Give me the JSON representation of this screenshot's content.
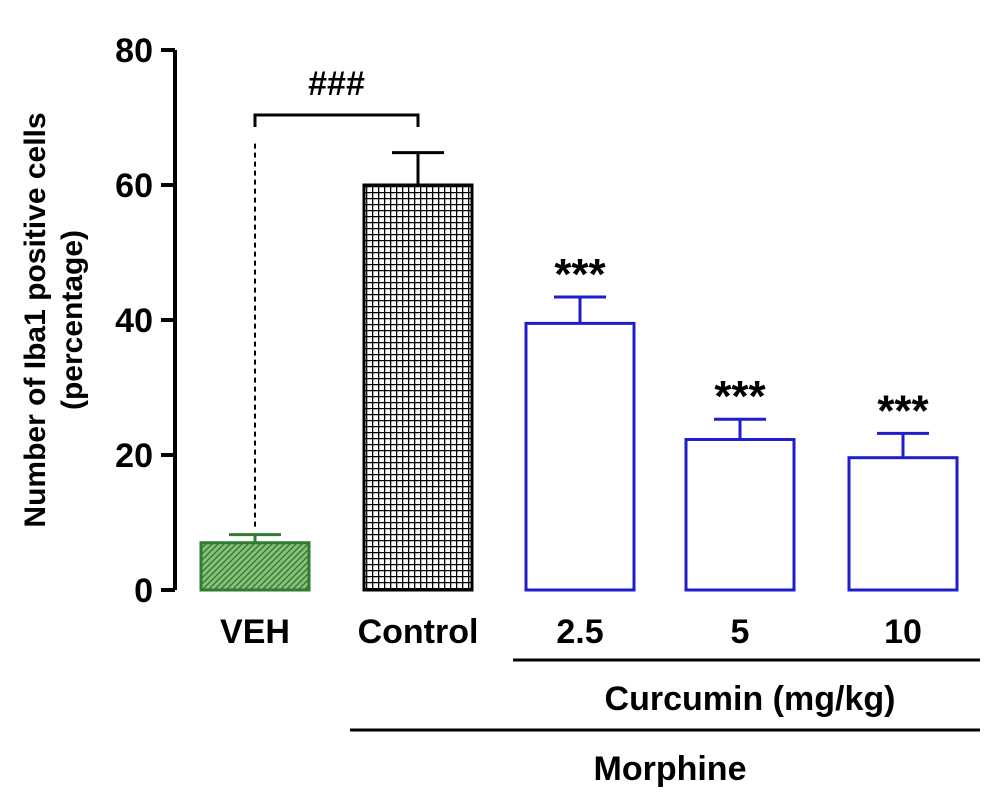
{
  "chart_data": {
    "type": "bar",
    "title": "",
    "xlabel": "",
    "ylabel_lines": [
      "Number of Iba1 positive cells",
      "(percentage)"
    ],
    "ylim": [
      0,
      80
    ],
    "yticks": [
      "0",
      "20",
      "40",
      "60",
      "80"
    ],
    "grid": false,
    "legend": "none",
    "categories": [
      "VEH",
      "Control",
      "2.5",
      "5",
      "10"
    ],
    "values": [
      7.0,
      60.0,
      39.5,
      22.3,
      19.6
    ],
    "errors": [
      1.2,
      4.8,
      3.9,
      3.0,
      3.6
    ],
    "significance_marks": [
      "",
      "",
      "***",
      "***",
      "***"
    ],
    "bracket_label": "###",
    "group_labels": [
      "Curcumin (mg/kg)",
      "Morphine"
    ],
    "colors": {
      "veh_fill": "#6fae5c",
      "veh_edge": "#2e7d32",
      "control_fill": "#9a9a9a",
      "control_edge": "#000000",
      "curcumin_fill": "#ffffff",
      "curcumin_edge": "#1e1ecc"
    }
  }
}
